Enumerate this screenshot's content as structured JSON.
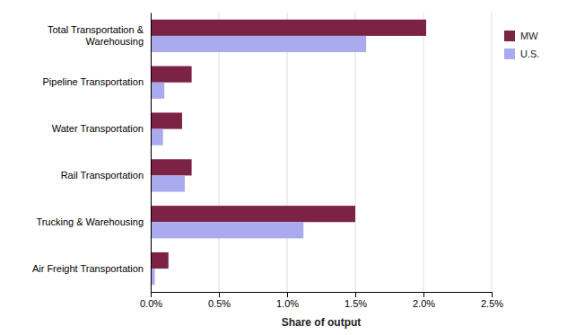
{
  "chart_data": {
    "type": "bar",
    "orientation": "horizontal",
    "categories": [
      "Total Transportation &\nWarehousing",
      "Pipeline Transportation",
      "Water Transportation",
      "Rail Transportation",
      "Trucking & Warehousing",
      "Air Freight Transportation"
    ],
    "series": [
      {
        "name": "MW",
        "color": "#7B2245",
        "values": [
          0.0202,
          0.003,
          0.0023,
          0.003,
          0.015,
          0.0013
        ]
      },
      {
        "name": "U.S.",
        "color": "#AAAAEE",
        "values": [
          0.0158,
          0.001,
          0.0009,
          0.0025,
          0.0112,
          0.0003
        ]
      }
    ],
    "xlabel": "Share of output",
    "xlim": [
      0,
      0.025
    ],
    "xticks": [
      {
        "value": 0.0,
        "label": "0.0%"
      },
      {
        "value": 0.005,
        "label": "0.5%"
      },
      {
        "value": 0.01,
        "label": "1.0%"
      },
      {
        "value": 0.015,
        "label": "1.5%"
      },
      {
        "value": 0.02,
        "label": "2.0%"
      },
      {
        "value": 0.025,
        "label": "2.5%"
      }
    ],
    "grid": true,
    "legend": "right"
  }
}
